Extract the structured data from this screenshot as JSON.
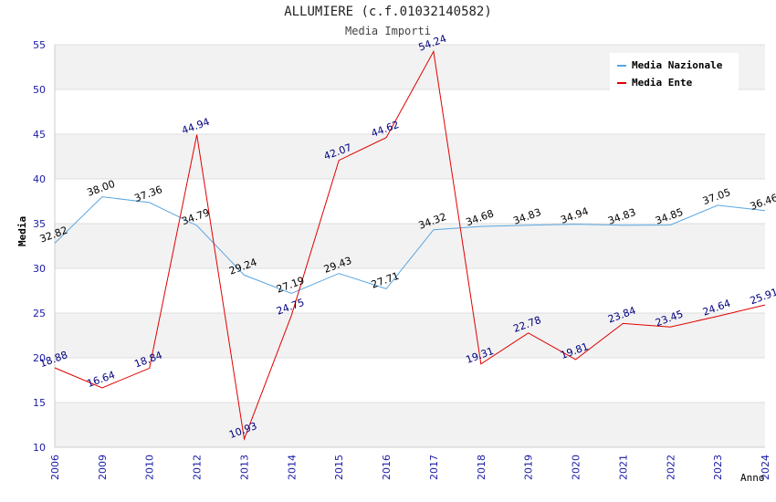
{
  "chart_data": {
    "type": "line",
    "title": "ALLUMIERE (c.f.01032140582)",
    "subtitle": "Media Importi",
    "xlabel": "Anno",
    "ylabel": "Media",
    "ylim": [
      10,
      55
    ],
    "yticks": [
      10,
      15,
      20,
      25,
      30,
      35,
      40,
      45,
      50,
      55
    ],
    "categories": [
      "2006",
      "2009",
      "2010",
      "2012",
      "2013",
      "2014",
      "2015",
      "2016",
      "2017",
      "2018",
      "2019",
      "2020",
      "2021",
      "2022",
      "2023",
      "2024"
    ],
    "series": [
      {
        "name": "Media Nazionale",
        "color": "#5aa6e0",
        "label_color": "#000000",
        "values": [
          32.82,
          38.0,
          37.36,
          34.79,
          29.24,
          27.19,
          29.43,
          27.71,
          34.32,
          34.68,
          34.83,
          34.94,
          34.83,
          34.85,
          37.05,
          36.46
        ],
        "labels": [
          "32.82",
          "38.00",
          "37.36",
          "34.79",
          "29.24",
          "27.19",
          "29.43",
          "27.71",
          "34.32",
          "34.68",
          "34.83",
          "34.94",
          "34.83",
          "34.85",
          "37.05",
          "36.46"
        ]
      },
      {
        "name": "Media Ente",
        "color": "#e00000",
        "label_color": "#000080",
        "values": [
          18.88,
          16.64,
          18.84,
          44.94,
          10.93,
          24.75,
          42.07,
          44.62,
          54.24,
          19.31,
          22.78,
          19.81,
          23.84,
          23.45,
          24.64,
          25.91
        ],
        "labels": [
          "18.88",
          "16.64",
          "18.84",
          "44.94",
          "10.93",
          "24.75",
          "42.07",
          "44.62",
          "54.24",
          "19.31",
          "22.78",
          "19.81",
          "23.84",
          "23.45",
          "24.64",
          "25.91"
        ]
      }
    ],
    "grid": true,
    "legend": "top-right"
  }
}
